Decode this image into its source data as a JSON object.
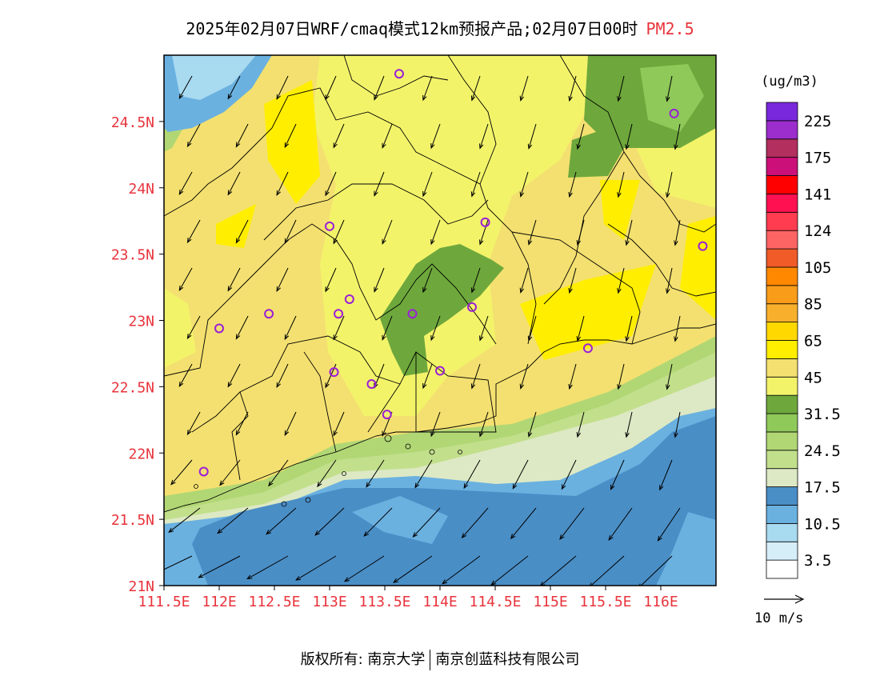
{
  "title": {
    "main": "2025年02月07日WRF/cmaq模式12km预报产品;02月07日00时",
    "pollutant": "PM2.5"
  },
  "map": {
    "lon_range": [
      111.5,
      116.5
    ],
    "lat_range": [
      21.0,
      25.0
    ],
    "lat_ticks": [
      "21N",
      "21.5N",
      "22N",
      "22.5N",
      "23N",
      "23.5N",
      "24N",
      "24.5N"
    ],
    "lon_ticks": [
      "111.5E",
      "112E",
      "112.5E",
      "113E",
      "113.5E",
      "114E",
      "114.5E",
      "115E",
      "115.5E",
      "116E"
    ],
    "axis_label_color": "#e8343c",
    "stations": [
      {
        "lon": 113.63,
        "lat": 24.86
      },
      {
        "lon": 116.12,
        "lat": 24.56
      },
      {
        "lon": 113.0,
        "lat": 23.71
      },
      {
        "lon": 114.41,
        "lat": 23.74
      },
      {
        "lon": 116.38,
        "lat": 23.56
      },
      {
        "lon": 113.18,
        "lat": 23.16
      },
      {
        "lon": 112.45,
        "lat": 23.05
      },
      {
        "lon": 113.08,
        "lat": 23.05
      },
      {
        "lon": 113.75,
        "lat": 23.05
      },
      {
        "lon": 114.29,
        "lat": 23.1
      },
      {
        "lon": 112.0,
        "lat": 22.94
      },
      {
        "lon": 115.34,
        "lat": 22.79
      },
      {
        "lon": 113.04,
        "lat": 22.61
      },
      {
        "lon": 113.38,
        "lat": 22.52
      },
      {
        "lon": 114.0,
        "lat": 22.62
      },
      {
        "lon": 113.52,
        "lat": 22.29
      },
      {
        "lon": 111.86,
        "lat": 21.86
      }
    ],
    "wind_reference": "10 m/s"
  },
  "colorbar": {
    "unit": "(ug/m3)",
    "colors": [
      "#ffffff",
      "#d6eef8",
      "#a8daf0",
      "#6ab1e0",
      "#4a8ec6",
      "#dde9c4",
      "#c2df8c",
      "#b1d774",
      "#8fc95a",
      "#6ea83c",
      "#f3f36a",
      "#f3e070",
      "#ffee00",
      "#ffd800",
      "#f8b02c",
      "#f89c1a",
      "#ff8800",
      "#f05b28",
      "#fd6464",
      "#ff3c50",
      "#ff1050",
      "#ff0000",
      "#cc1079",
      "#b22f5e",
      "#9b2ecc",
      "#7a28dc"
    ],
    "labels": [
      "3.5",
      "10.5",
      "17.5",
      "24.5",
      "31.5",
      "45",
      "65",
      "85",
      "105",
      "124",
      "141",
      "175",
      "225"
    ]
  },
  "footer": {
    "left": "版权所有: 南京大学",
    "right": "南京创蓝科技有限公司"
  }
}
